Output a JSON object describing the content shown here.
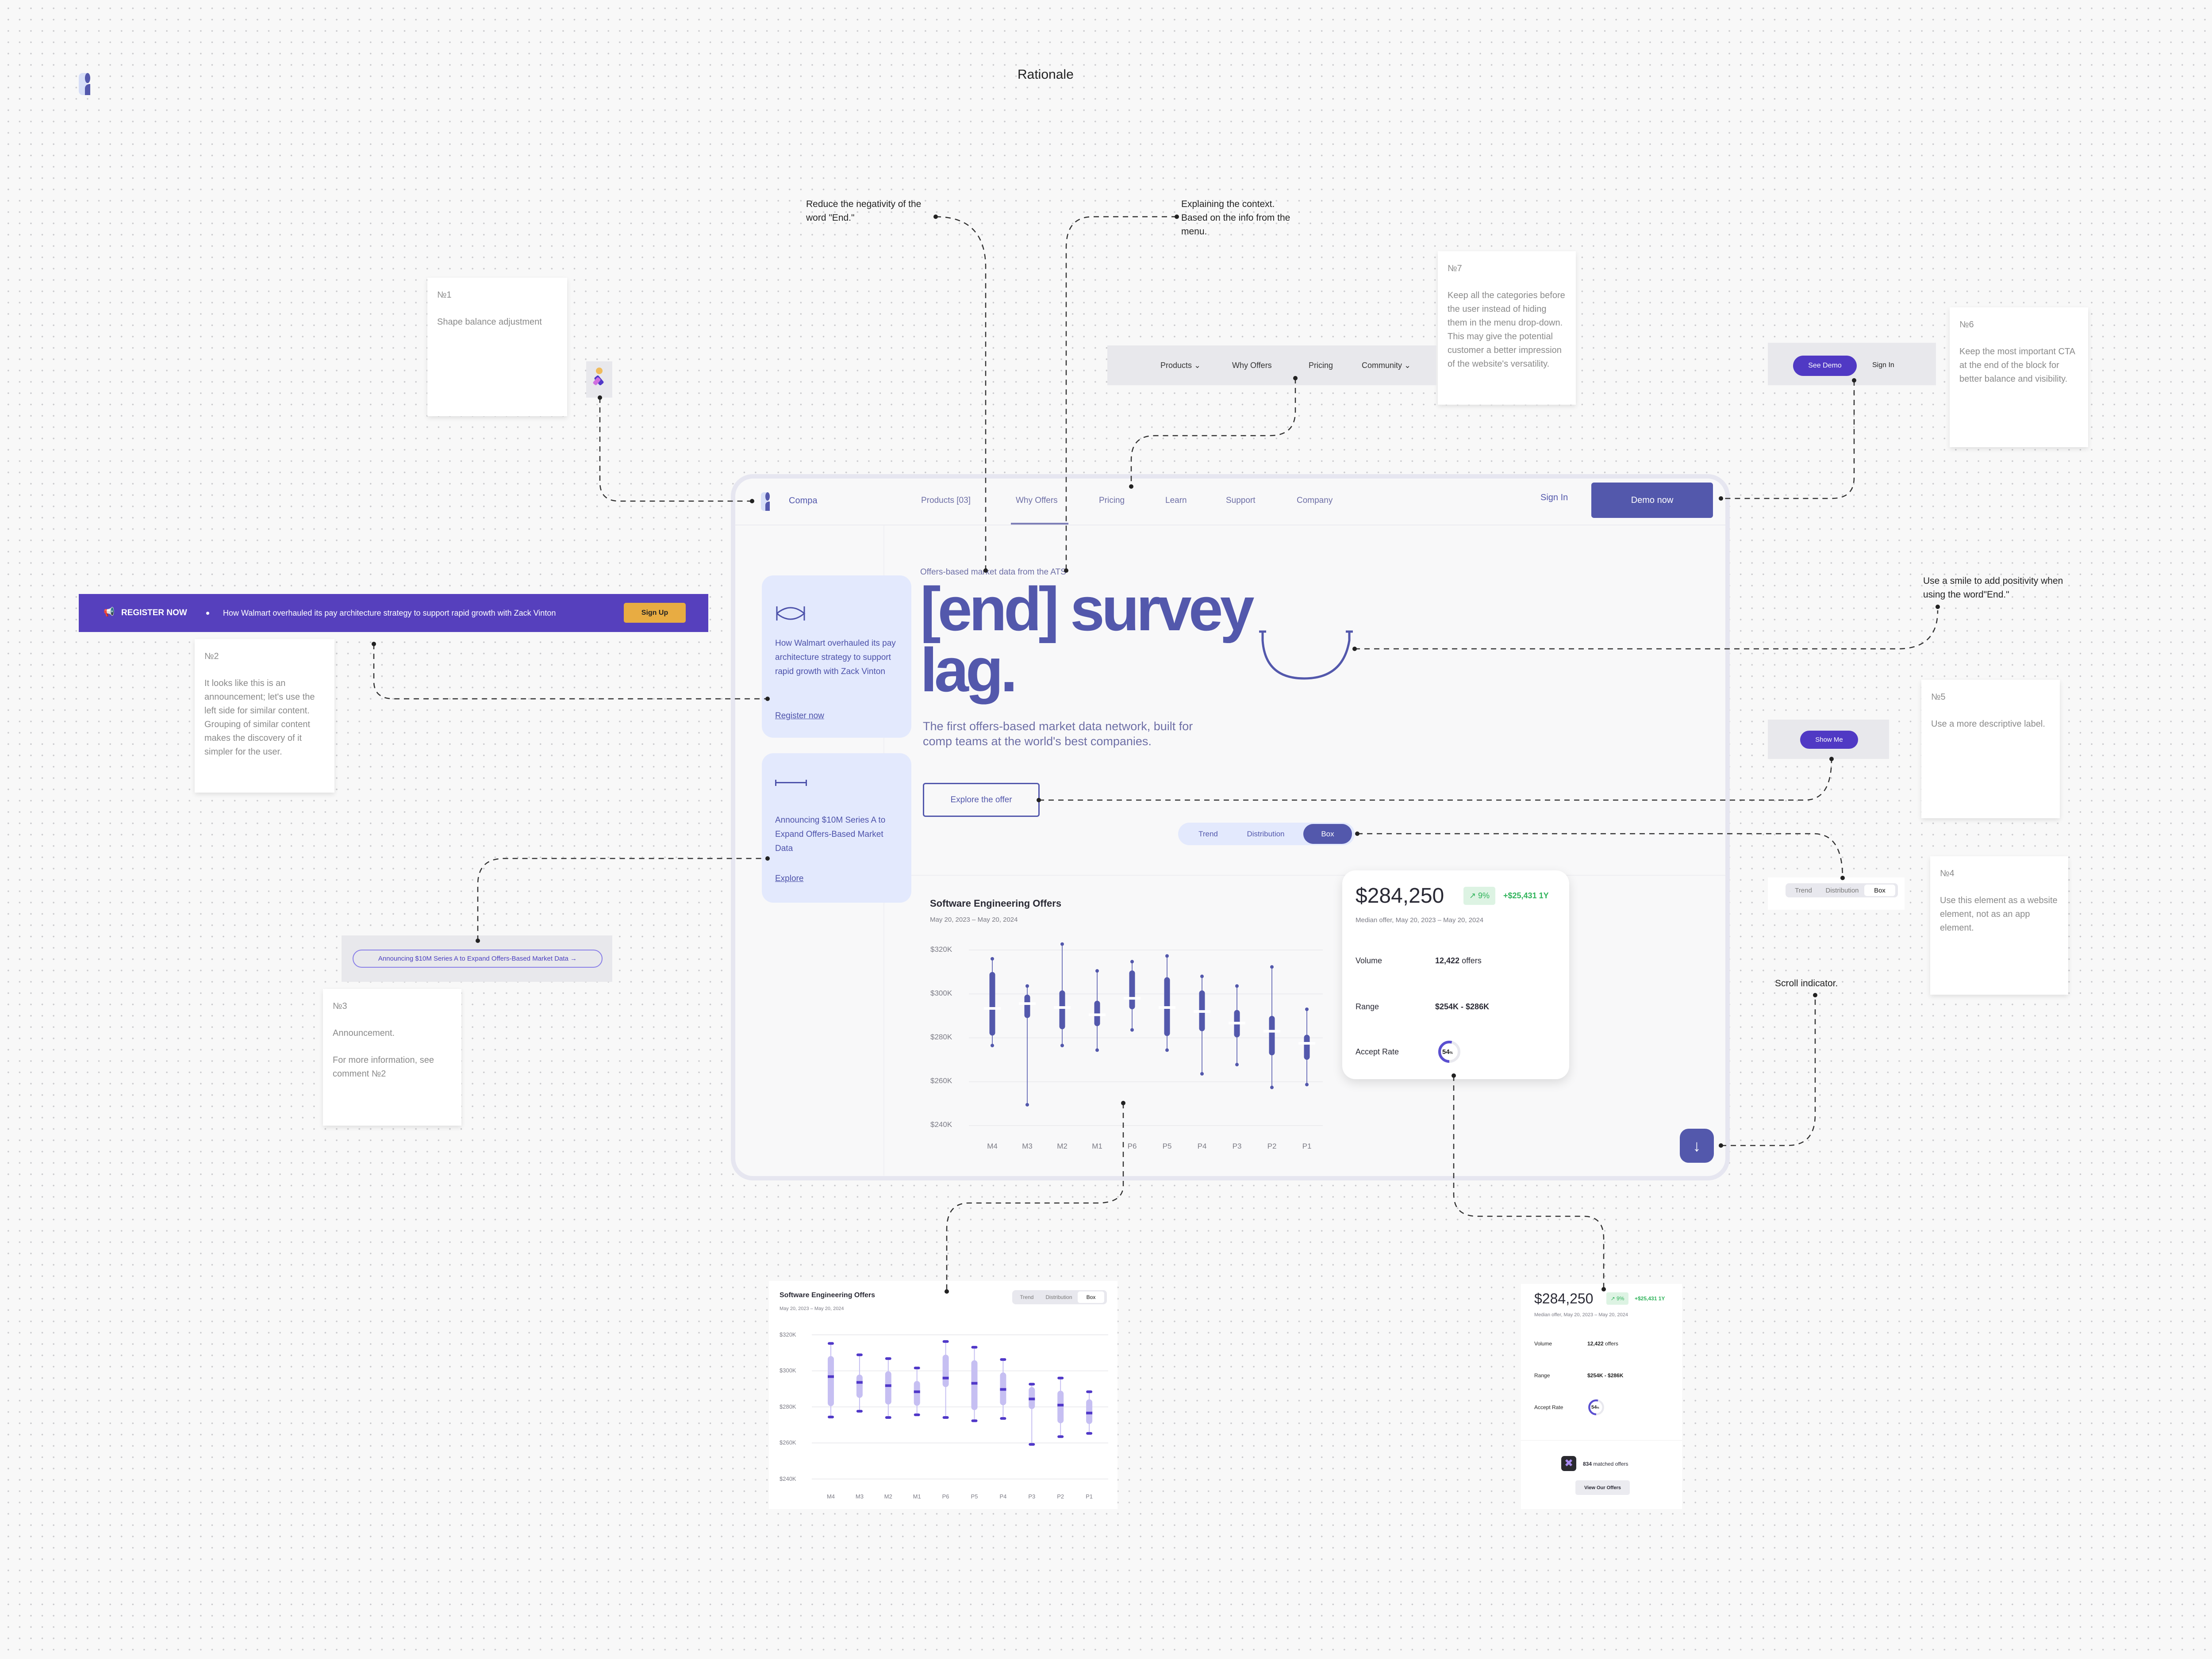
{
  "board": {
    "title": "Rationale"
  },
  "annotations": {
    "reduce": [
      "Reduce the negativity of the",
      "word \"End.\""
    ],
    "explaining": [
      "Explaining the context.",
      "Based on the info from the",
      "menu."
    ],
    "smile": [
      "Use a smile to add positivity when",
      "using the word\"End.\""
    ],
    "scroll": "Scroll indicator."
  },
  "notes": [
    {
      "num": "№1",
      "text": "Shape balance adjustment"
    },
    {
      "num": "№2",
      "text": "It looks like this is an announcement; let's use the left side for similar content. Grouping of similar content makes the discovery of it simpler for the user."
    },
    {
      "num": "№3",
      "text": "Announcement.",
      "text2": "For more information, see comment №2"
    },
    {
      "num": "№4",
      "text": "Use this element as a website element, not as an app element."
    },
    {
      "num": "№5",
      "text": "Use a more descriptive label."
    },
    {
      "num": "№6",
      "text": "Keep the most important CTA at the end of the block for better balance and visibility."
    },
    {
      "num": "№7",
      "text": "Keep all the categories before the user instead of hiding them in the menu drop-down. This may give the potential customer a better impression of the website's versatility."
    }
  ],
  "original": {
    "nav": [
      "Products ⌄",
      "Why Offers",
      "Pricing",
      "Community ⌄"
    ],
    "see_demo": "See Demo",
    "sign_in": "Sign In",
    "show_me": "Show Me",
    "announcement_pill": "Announcing $10M Series A to Expand Offers-Based Market Data  →",
    "segmented": [
      "Trend",
      "Distribution",
      "Box"
    ],
    "banner": {
      "label": "REGISTER NOW",
      "text": "How Walmart overhauled its pay architecture strategy to support rapid growth with Zack Vinton",
      "button": "Sign Up"
    }
  },
  "site": {
    "brand": "Compa",
    "nav": [
      "Products [03]",
      "Why Offers",
      "Pricing",
      "Learn",
      "Support",
      "Company"
    ],
    "active_nav": "Why Offers",
    "sign_in": "Sign In",
    "demo": "Demo now",
    "cards": [
      {
        "text": "How Walmart overhauled its pay architecture strategy to support rapid growth with Zack Vinton",
        "link": "Register now"
      },
      {
        "text": "Announcing $10M Series A to Expand Offers-Based Market Data",
        "link": "Explore"
      }
    ],
    "eyebrow": "Offers-based market data from the ATS",
    "headline1": "[end] survey",
    "headline2": "lag.",
    "subtitle": "The first offers-based market data network, built for comp teams at the world's best companies.",
    "cta": "Explore the offer",
    "segmented": [
      "Trend",
      "Distribution",
      "Box"
    ],
    "segmented_active": "Box",
    "colors": {
      "primary": "#5358ac",
      "accent": "#5039c4",
      "card": "#e3e9fd",
      "banner": "#5640bd",
      "signup": "#e8ac42",
      "green": "#2fb35a"
    }
  },
  "stats": {
    "price": "$284,250",
    "badge": "↗ 9%",
    "delta": "+$25,431 1Y",
    "median": "Median offer, May 20, 2023 – May 20, 2024",
    "volume_label": "Volume",
    "volume_value": "12,422",
    "volume_unit": " offers",
    "range_label": "Range",
    "range_value": "$254K - $286K",
    "accept_label": "Accept Rate",
    "accept_value": "54",
    "accept_unit": "%",
    "accept_fraction": 0.54,
    "matched_count": "834",
    "matched_text": " matched offers",
    "view_button": "View Our Offers"
  },
  "chart_data": [
    {
      "type": "box",
      "title": "Software Engineering Offers",
      "subtitle": "May 20, 2023 – May 20, 2024",
      "categories": [
        "M4",
        "M3",
        "M2",
        "M1",
        "P6",
        "P5",
        "P4",
        "P3",
        "P2",
        "P1"
      ],
      "yticks": [
        "$320K",
        "$300K",
        "$280K",
        "$260K",
        "$240K"
      ],
      "ylim": [
        240,
        320
      ],
      "unit": "$K",
      "grid": true,
      "boxes": [
        {
          "min": 276.5,
          "q1": 281,
          "median": 293.4,
          "q3": 310,
          "max": 316
        },
        {
          "min": 249.5,
          "q1": 289,
          "median": 295.6,
          "q3": 299.7,
          "max": 303.6
        },
        {
          "min": 276.5,
          "q1": 283.9,
          "median": 293.8,
          "q3": 301.6,
          "max": 322.7
        },
        {
          "min": 274.4,
          "q1": 285.3,
          "median": 290.5,
          "q3": 296.9,
          "max": 310.5
        },
        {
          "min": 283.6,
          "q1": 293,
          "median": 298,
          "q3": 310.7,
          "max": 314.7
        },
        {
          "min": 274.4,
          "q1": 280.8,
          "median": 293.8,
          "q3": 307.6,
          "max": 317.3
        },
        {
          "min": 263.6,
          "q1": 283,
          "median": 292,
          "q3": 301.6,
          "max": 308
        },
        {
          "min": 267.8,
          "q1": 280.2,
          "median": 286.7,
          "q3": 292.7,
          "max": 303.6
        },
        {
          "min": 257.4,
          "q1": 272,
          "median": 283,
          "q3": 290,
          "max": 312.3
        },
        {
          "min": 258.7,
          "q1": 270,
          "median": 277.5,
          "q3": 281.4,
          "max": 293
        }
      ]
    },
    {
      "type": "box",
      "title": "Software Engineering Offers",
      "subtitle": "May 20, 2023 – May 20, 2024",
      "categories": [
        "M4",
        "M3",
        "M2",
        "M1",
        "P6",
        "P5",
        "P4",
        "P3",
        "P2",
        "P1"
      ],
      "yticks": [
        "$320K",
        "$300K",
        "$280K",
        "$260K",
        "$240K"
      ],
      "ylim": [
        240,
        320
      ],
      "unit": "$K",
      "grid": true,
      "segmented": [
        "Trend",
        "Distribution",
        "Box"
      ],
      "boxes": [
        {
          "min": 274.4,
          "q1": 280.4,
          "median": 296.8,
          "q3": 308.2,
          "max": 315.2
        },
        {
          "min": 277.6,
          "q1": 285,
          "median": 293.6,
          "q3": 297.9,
          "max": 308.9
        },
        {
          "min": 274.1,
          "q1": 281.3,
          "median": 291.8,
          "q3": 299.8,
          "max": 306.8
        },
        {
          "min": 275.6,
          "q1": 280.6,
          "median": 288.4,
          "q3": 294.4,
          "max": 301.6
        },
        {
          "min": 274.1,
          "q1": 291,
          "median": 296,
          "q3": 309,
          "max": 316.3
        },
        {
          "min": 272.3,
          "q1": 278.2,
          "median": 293.1,
          "q3": 305.9,
          "max": 313.1
        },
        {
          "min": 273.6,
          "q1": 280.9,
          "median": 289.7,
          "q3": 299.1,
          "max": 306.3
        },
        {
          "min": 259.2,
          "q1": 278.8,
          "median": 284.4,
          "q3": 291,
          "max": 292.6
        },
        {
          "min": 263.5,
          "q1": 270.9,
          "median": 281,
          "q3": 289,
          "max": 296
        },
        {
          "min": 265.3,
          "q1": 270.5,
          "median": 276.6,
          "q3": 284.2,
          "max": 288.4
        }
      ]
    }
  ]
}
